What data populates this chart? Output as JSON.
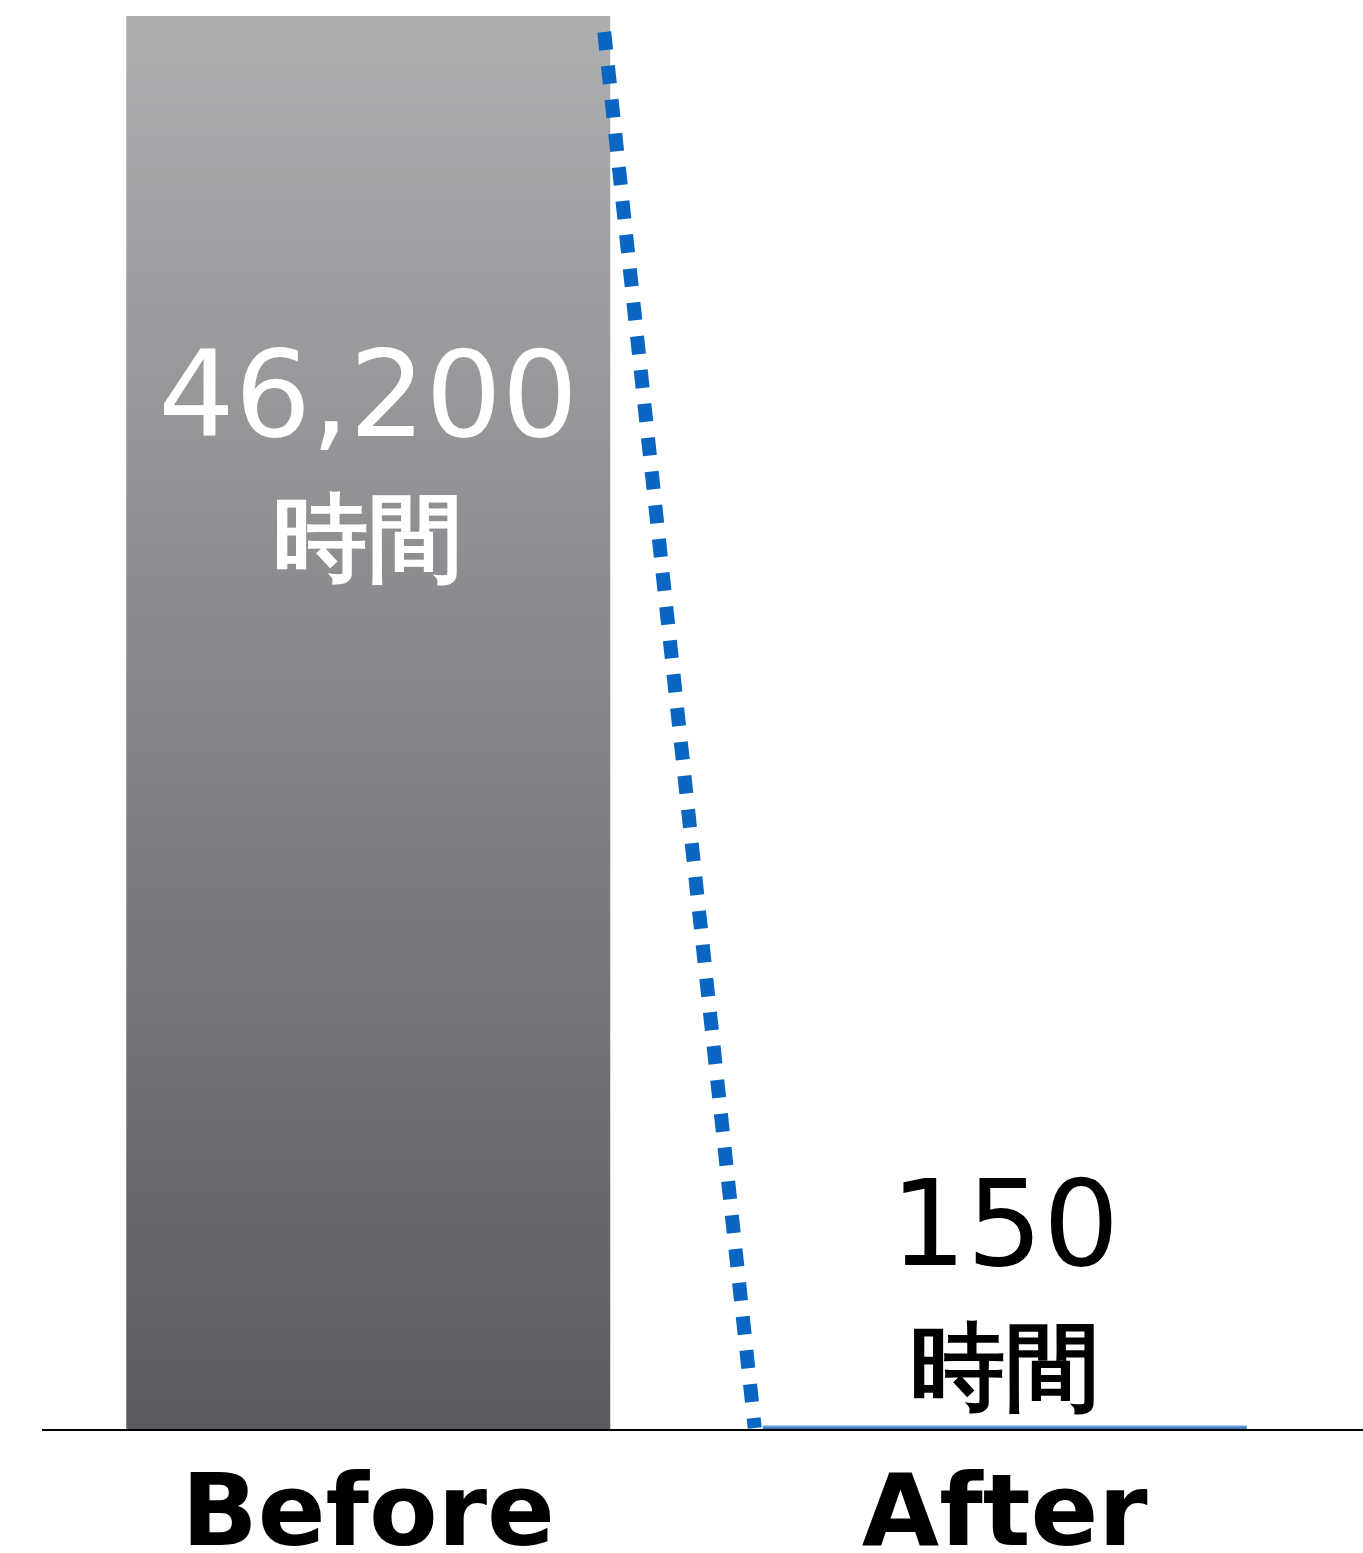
{
  "chart_data": {
    "type": "bar",
    "categories": [
      "Before",
      "After"
    ],
    "values": [
      46200,
      150
    ],
    "colors": [
      "#7f8286",
      "#2f82e0"
    ],
    "value_labels": [
      "46,200 時間",
      "150 時間"
    ]
  }
}
